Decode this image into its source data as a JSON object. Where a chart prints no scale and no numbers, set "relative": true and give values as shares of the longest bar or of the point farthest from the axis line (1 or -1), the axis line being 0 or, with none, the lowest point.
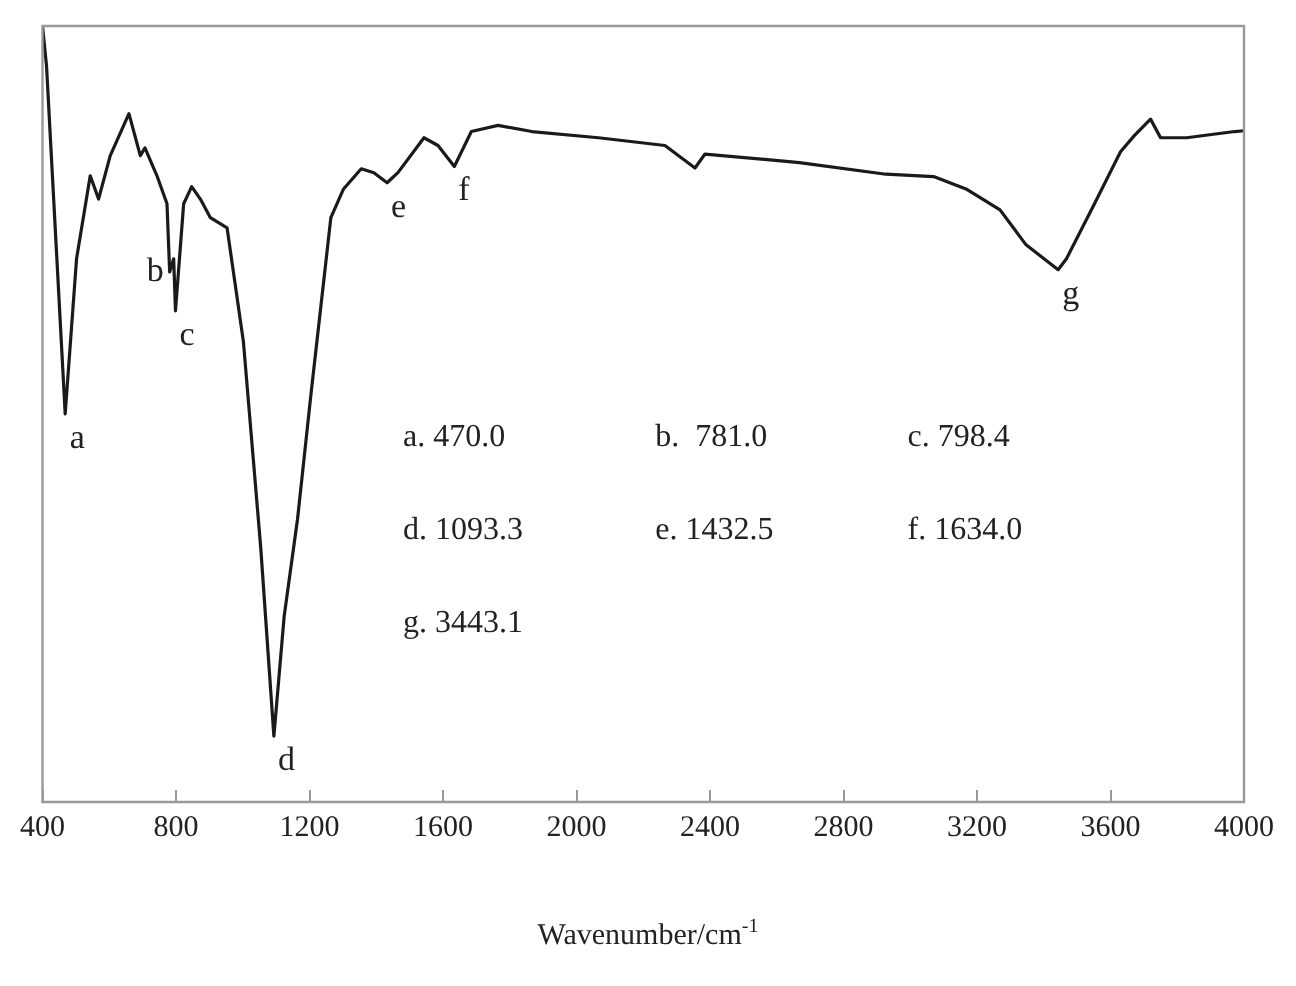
{
  "chart_data": {
    "type": "line",
    "relative": true,
    "xlabel": "Wavenumber/cm$^{-1}$",
    "xlim": [
      400,
      4000
    ],
    "xticks": [
      400,
      800,
      1200,
      1600,
      2000,
      2400,
      2800,
      3200,
      3600,
      4000
    ],
    "grid": false,
    "legend": false,
    "marker": "none",
    "line_style": "solid",
    "series": [
      {
        "color": "#1a1a1a",
        "x": [
          400,
          412,
          468,
          502,
          543,
          568,
          603,
          659,
          693,
          707,
          743,
          773,
          781,
          793,
          798.4,
          823,
          847,
          873,
          903,
          953,
          1002,
          1054,
          1093.3,
          1124,
          1164,
          1204,
          1264,
          1302,
          1355,
          1393,
          1432.5,
          1465,
          1543,
          1585,
          1634,
          1685,
          1765,
          1866,
          2066,
          2265,
          2355,
          2385,
          2668,
          2927,
          3070,
          3167,
          3269,
          3347,
          3443.1,
          3468,
          3552,
          3630,
          3672,
          3720,
          3750,
          3828,
          3972,
          4000
        ],
        "values": [
          1.0,
          0.949,
          0.5,
          0.7,
          0.807,
          0.777,
          0.833,
          0.887,
          0.833,
          0.843,
          0.807,
          0.771,
          0.683,
          0.7,
          0.633,
          0.771,
          0.793,
          0.777,
          0.753,
          0.74,
          0.593,
          0.327,
          0.085,
          0.239,
          0.364,
          0.524,
          0.753,
          0.79,
          0.816,
          0.811,
          0.798,
          0.811,
          0.856,
          0.846,
          0.819,
          0.864,
          0.872,
          0.864,
          0.856,
          0.846,
          0.817,
          0.835,
          0.824,
          0.809,
          0.806,
          0.79,
          0.763,
          0.718,
          0.686,
          0.7,
          0.771,
          0.838,
          0.859,
          0.88,
          0.856,
          0.856,
          0.864,
          0.865
        ]
      }
    ],
    "annotations": [
      {
        "text": "a",
        "x": 470,
        "y": 0.5
      },
      {
        "text": "b",
        "x": 781,
        "y": 0.683
      },
      {
        "text": "c",
        "x": 798.4,
        "y": 0.633
      },
      {
        "text": "d",
        "x": 1093.3,
        "y": 0.085
      },
      {
        "text": "e",
        "x": 1432.5,
        "y": 0.798
      },
      {
        "text": "f",
        "x": 1634,
        "y": 0.819
      },
      {
        "text": "g",
        "x": 3443.1,
        "y": 0.686
      },
      "a. 470.0",
      "b.  781.0",
      "c. 798.4",
      "d. 1093.3",
      "e. 1432.5",
      "f. 1634.0",
      "g. 3443.1"
    ]
  }
}
